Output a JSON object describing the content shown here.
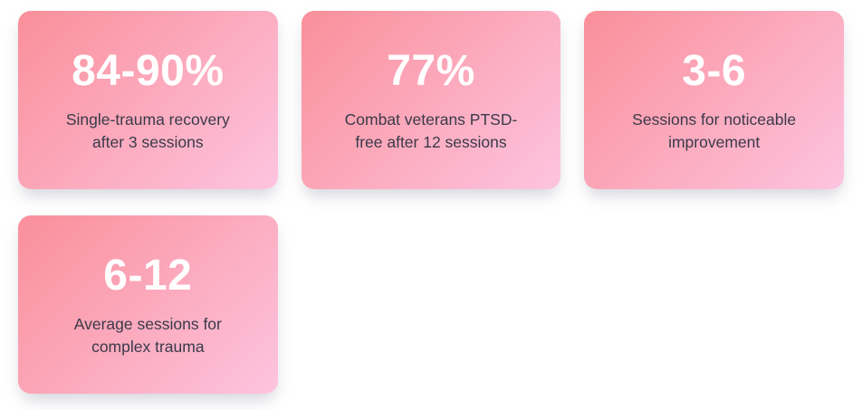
{
  "colors": {
    "card_gradient_start": "#fa8f9a",
    "card_gradient_end": "#fdc4df",
    "value_text": "#ffffff",
    "label_text": "#3a3a4a",
    "page_background": "#ffffff"
  },
  "cards": [
    {
      "value": "84-90%",
      "label": "Single-trauma recovery after 3 sessions"
    },
    {
      "value": "77%",
      "label": "Combat veterans PTSD-free after 12 sessions"
    },
    {
      "value": "3-6",
      "label": "Sessions for noticeable improvement"
    },
    {
      "value": "6-12",
      "label": "Average sessions for complex trauma"
    }
  ]
}
